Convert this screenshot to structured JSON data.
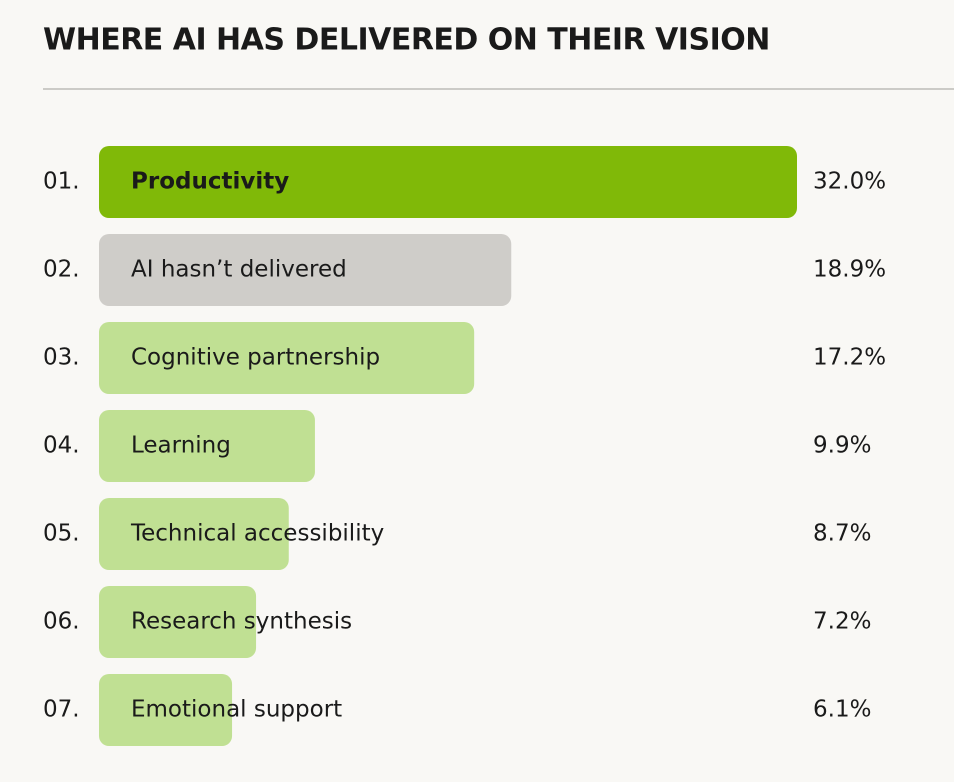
{
  "chart_data": {
    "type": "bar",
    "orientation": "horizontal",
    "title": "WHERE AI HAS DELIVERED ON THEIR VISION",
    "ranks": [
      "01.",
      "02.",
      "03.",
      "04.",
      "05.",
      "06.",
      "07."
    ],
    "categories": [
      "Productivity",
      "AI hasn’t delivered",
      "Cognitive partnership",
      "Learning",
      "Technical accessibility",
      "Research synthesis",
      "Emotional support"
    ],
    "values": [
      32.0,
      18.9,
      17.2,
      9.9,
      8.7,
      7.2,
      6.1
    ],
    "value_labels": [
      "32.0%",
      "18.9%",
      "17.2%",
      "9.9%",
      "8.7%",
      "7.2%",
      "6.1%"
    ],
    "colors": [
      "#80b908",
      "#cfcdc9",
      "#c0e093",
      "#c0e093",
      "#c0e093",
      "#c0e093",
      "#c0e093"
    ]
  }
}
